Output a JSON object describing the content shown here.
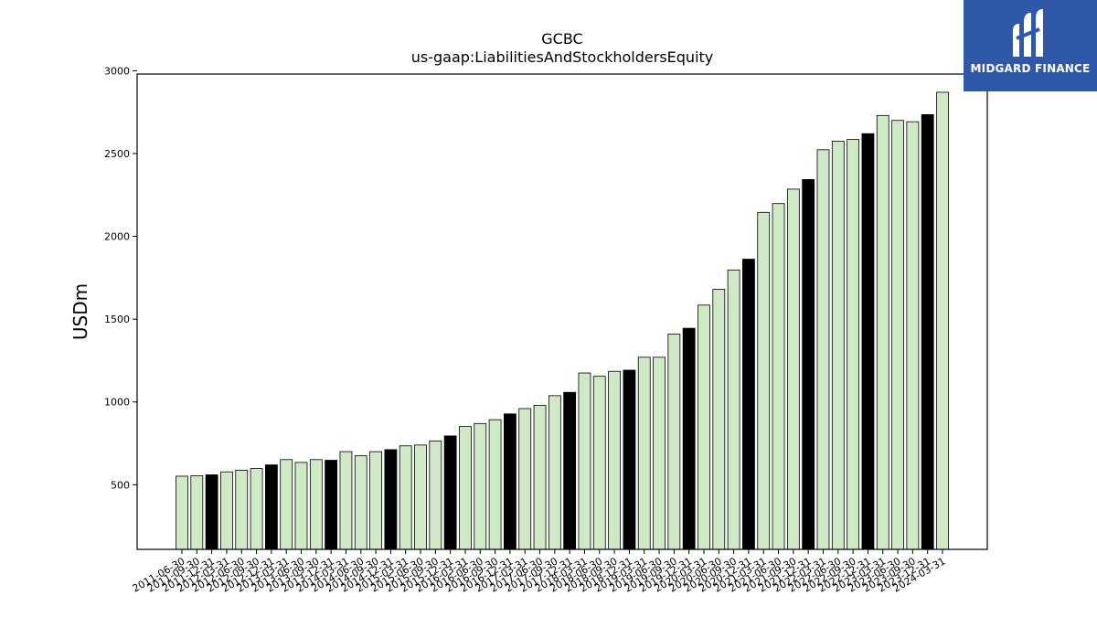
{
  "chart_data": {
    "type": "bar",
    "title": "GCBC",
    "subtitle": "us-gaap:LiabilitiesAndStockholdersEquity",
    "xlabel": "",
    "ylabel": "USDm",
    "ylim": [
      110,
      2980
    ],
    "yticks": [
      500,
      1000,
      1500,
      2000,
      2500,
      3000
    ],
    "grid": false,
    "colors": {
      "quarter": "#cfe8c6",
      "fiscal_year_end": "#000000",
      "edge": "#000000"
    },
    "categories": [
      "2011-06-30",
      "2011-09-30",
      "2011-12-31",
      "2012-03-31",
      "2012-06-30",
      "2012-09-30",
      "2012-12-31",
      "2013-03-31",
      "2013-06-30",
      "2013-09-30",
      "2013-12-31",
      "2014-03-31",
      "2014-06-30",
      "2014-09-30",
      "2014-12-31",
      "2015-03-31",
      "2015-06-30",
      "2015-09-30",
      "2015-12-31",
      "2016-03-31",
      "2016-06-30",
      "2016-09-30",
      "2016-12-31",
      "2017-03-31",
      "2017-06-30",
      "2017-09-30",
      "2017-12-31",
      "2018-03-31",
      "2018-06-30",
      "2018-09-30",
      "2018-12-31",
      "2019-03-31",
      "2019-06-30",
      "2019-09-30",
      "2019-12-31",
      "2020-03-31",
      "2020-06-30",
      "2020-09-30",
      "2020-12-31",
      "2021-03-31",
      "2021-06-30",
      "2021-09-30",
      "2021-12-31",
      "2022-03-31",
      "2022-06-30",
      "2022-09-30",
      "2022-12-31",
      "2023-03-31",
      "2023-06-30",
      "2023-09-30",
      "2023-12-31",
      "2024-03-31"
    ],
    "values": [
      552,
      555,
      560,
      578,
      588,
      598,
      620,
      652,
      635,
      652,
      648,
      700,
      675,
      700,
      712,
      735,
      740,
      765,
      795,
      852,
      870,
      893,
      928,
      960,
      980,
      1038,
      1058,
      1175,
      1155,
      1185,
      1192,
      1270,
      1270,
      1410,
      1445,
      1585,
      1680,
      1797,
      1862,
      2145,
      2198,
      2285,
      2343,
      2523,
      2575,
      2585,
      2620,
      2730,
      2700,
      2692,
      2735,
      2870
    ],
    "highlight": [
      false,
      false,
      true,
      false,
      false,
      false,
      true,
      false,
      false,
      false,
      true,
      false,
      false,
      false,
      true,
      false,
      false,
      false,
      true,
      false,
      false,
      false,
      true,
      false,
      false,
      false,
      true,
      false,
      false,
      false,
      true,
      false,
      false,
      false,
      true,
      false,
      false,
      false,
      true,
      false,
      false,
      false,
      true,
      false,
      false,
      false,
      true,
      false,
      false,
      false,
      true,
      false
    ]
  },
  "logo": {
    "text": "MIDGARD FINANCE"
  }
}
